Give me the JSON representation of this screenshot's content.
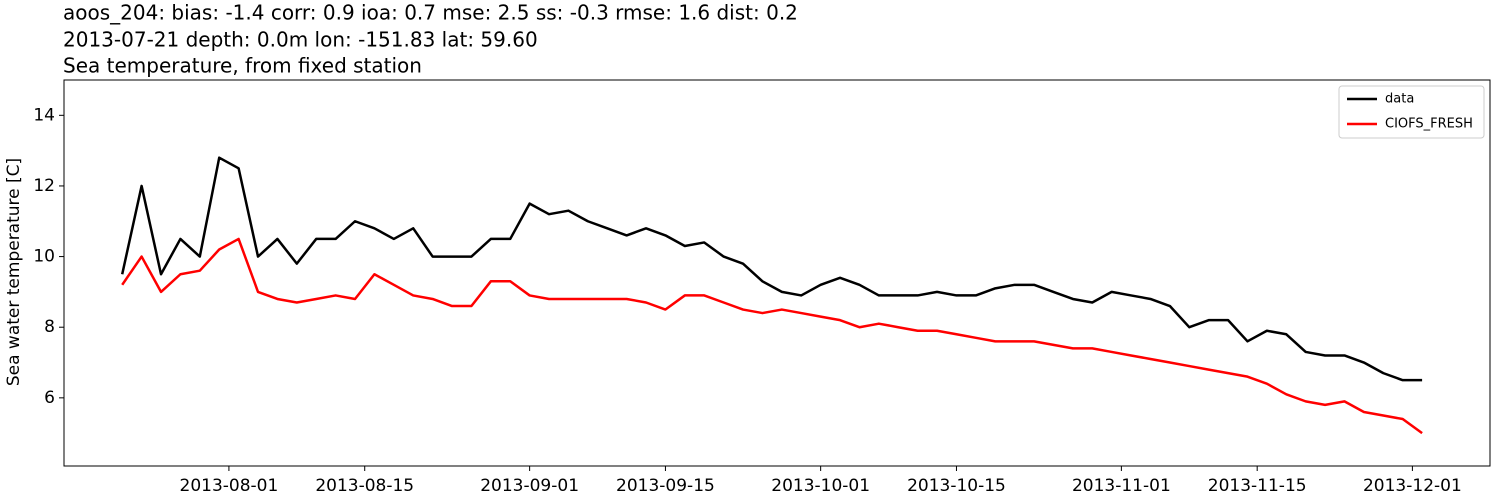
{
  "chart_data": {
    "type": "line",
    "title": [
      "aoos_204: bias: -1.4  corr: 0.9  ioa: 0.7  mse: 2.5  ss: -0.3  rmse: 1.6  dist: 0.2",
      "2013-07-21 depth: 0.0m lon: -151.83 lat: 59.60",
      "Sea temperature, from fixed station"
    ],
    "y_label": "Sea water temperature [C]",
    "x": [
      "2013-07-21",
      "2013-07-23",
      "2013-07-25",
      "2013-07-27",
      "2013-07-29",
      "2013-07-31",
      "2013-08-02",
      "2013-08-04",
      "2013-08-06",
      "2013-08-08",
      "2013-08-10",
      "2013-08-12",
      "2013-08-14",
      "2013-08-16",
      "2013-08-18",
      "2013-08-20",
      "2013-08-22",
      "2013-08-24",
      "2013-08-26",
      "2013-08-28",
      "2013-08-30",
      "2013-09-01",
      "2013-09-03",
      "2013-09-05",
      "2013-09-07",
      "2013-09-09",
      "2013-09-11",
      "2013-09-13",
      "2013-09-15",
      "2013-09-17",
      "2013-09-19",
      "2013-09-21",
      "2013-09-23",
      "2013-09-25",
      "2013-09-27",
      "2013-09-29",
      "2013-10-01",
      "2013-10-03",
      "2013-10-05",
      "2013-10-07",
      "2013-10-09",
      "2013-10-11",
      "2013-10-13",
      "2013-10-15",
      "2013-10-17",
      "2013-10-19",
      "2013-10-21",
      "2013-10-23",
      "2013-10-25",
      "2013-10-27",
      "2013-10-29",
      "2013-10-31",
      "2013-11-02",
      "2013-11-04",
      "2013-11-06",
      "2013-11-08",
      "2013-11-10",
      "2013-11-12",
      "2013-11-14",
      "2013-11-16",
      "2013-11-18",
      "2013-11-20",
      "2013-11-22",
      "2013-11-24",
      "2013-11-26",
      "2013-11-28",
      "2013-11-30",
      "2013-12-02"
    ],
    "series": [
      {
        "name": "data",
        "color": "#000000",
        "values": [
          9.5,
          12.0,
          9.5,
          10.5,
          10.0,
          12.8,
          12.5,
          10.0,
          10.5,
          9.8,
          10.5,
          10.5,
          11.0,
          10.8,
          10.5,
          10.8,
          10.0,
          10.0,
          10.0,
          10.5,
          10.5,
          11.5,
          11.2,
          11.3,
          11.0,
          10.8,
          10.6,
          10.8,
          10.6,
          10.3,
          10.4,
          10.0,
          9.8,
          9.3,
          9.0,
          8.9,
          9.2,
          9.4,
          9.2,
          8.9,
          8.9,
          8.9,
          9.0,
          8.9,
          8.9,
          9.1,
          9.2,
          9.2,
          9.0,
          8.8,
          8.7,
          9.0,
          8.9,
          8.8,
          8.6,
          8.0,
          8.2,
          8.2,
          7.6,
          7.9,
          7.8,
          7.3,
          7.2,
          7.2,
          7.0,
          6.7,
          6.5,
          6.5
        ]
      },
      {
        "name": "CIOFS_FRESH",
        "color": "#ff0000",
        "values": [
          9.2,
          10.0,
          9.0,
          9.5,
          9.6,
          10.2,
          10.5,
          9.0,
          8.8,
          8.7,
          8.8,
          8.9,
          8.8,
          9.5,
          9.2,
          8.9,
          8.8,
          8.6,
          8.6,
          9.3,
          9.3,
          8.9,
          8.8,
          8.8,
          8.8,
          8.8,
          8.8,
          8.7,
          8.5,
          8.9,
          8.9,
          8.7,
          8.5,
          8.4,
          8.5,
          8.4,
          8.3,
          8.2,
          8.0,
          8.1,
          8.0,
          7.9,
          7.9,
          7.8,
          7.7,
          7.6,
          7.6,
          7.6,
          7.5,
          7.4,
          7.4,
          7.3,
          7.2,
          7.1,
          7.0,
          6.9,
          6.8,
          6.7,
          6.6,
          6.4,
          6.1,
          5.9,
          5.8,
          5.9,
          5.6,
          5.5,
          5.4,
          5.0
        ]
      }
    ],
    "xlim": [
      "2013-07-15",
      "2013-12-09"
    ],
    "xticks": [
      "2013-08-01",
      "2013-08-15",
      "2013-09-01",
      "2013-09-15",
      "2013-10-01",
      "2013-10-15",
      "2013-11-01",
      "2013-11-15",
      "2013-12-01"
    ],
    "ylim": [
      4.07,
      15.0
    ],
    "yticks": [
      6,
      8,
      10,
      12,
      14
    ],
    "grid": false,
    "legend": "upper right"
  }
}
